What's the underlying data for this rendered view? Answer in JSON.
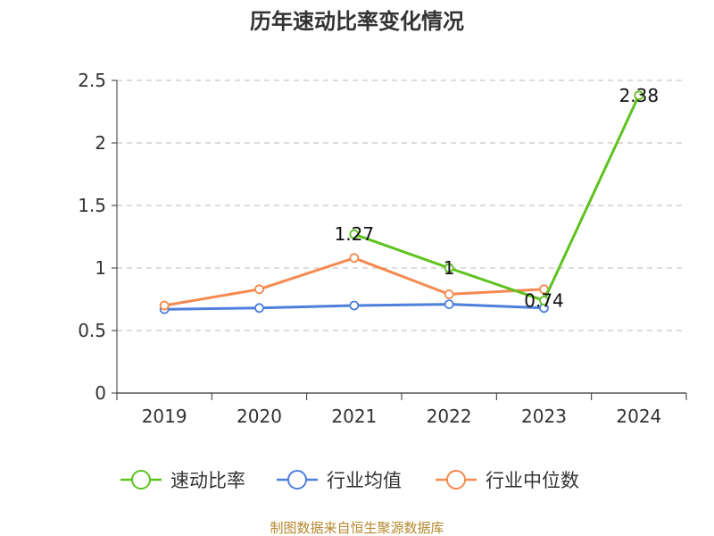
{
  "chart_data": {
    "type": "line",
    "title": "历年速动比率变化情况",
    "categories": [
      "2019",
      "2020",
      "2021",
      "2022",
      "2023",
      "2024"
    ],
    "ylim": [
      0,
      2.5
    ],
    "yticks": [
      "0",
      "0.5",
      "1",
      "1.5",
      "2",
      "2.5"
    ],
    "grid": true,
    "legend_position": "bottom",
    "series": [
      {
        "name": "速动比率",
        "color": "#5ec21f",
        "values": [
          null,
          null,
          1.27,
          1.0,
          0.74,
          2.38
        ],
        "labels": [
          "",
          "",
          "1.27",
          "1",
          "0.74",
          "2.38"
        ]
      },
      {
        "name": "行业均值",
        "color": "#4f7fdd",
        "values": [
          0.67,
          0.68,
          0.7,
          0.71,
          0.68,
          null
        ]
      },
      {
        "name": "行业中位数",
        "color": "#f5894f",
        "values": [
          0.7,
          0.83,
          1.08,
          0.79,
          0.83,
          null
        ]
      }
    ]
  },
  "source": "制图数据来自恒生聚源数据库"
}
